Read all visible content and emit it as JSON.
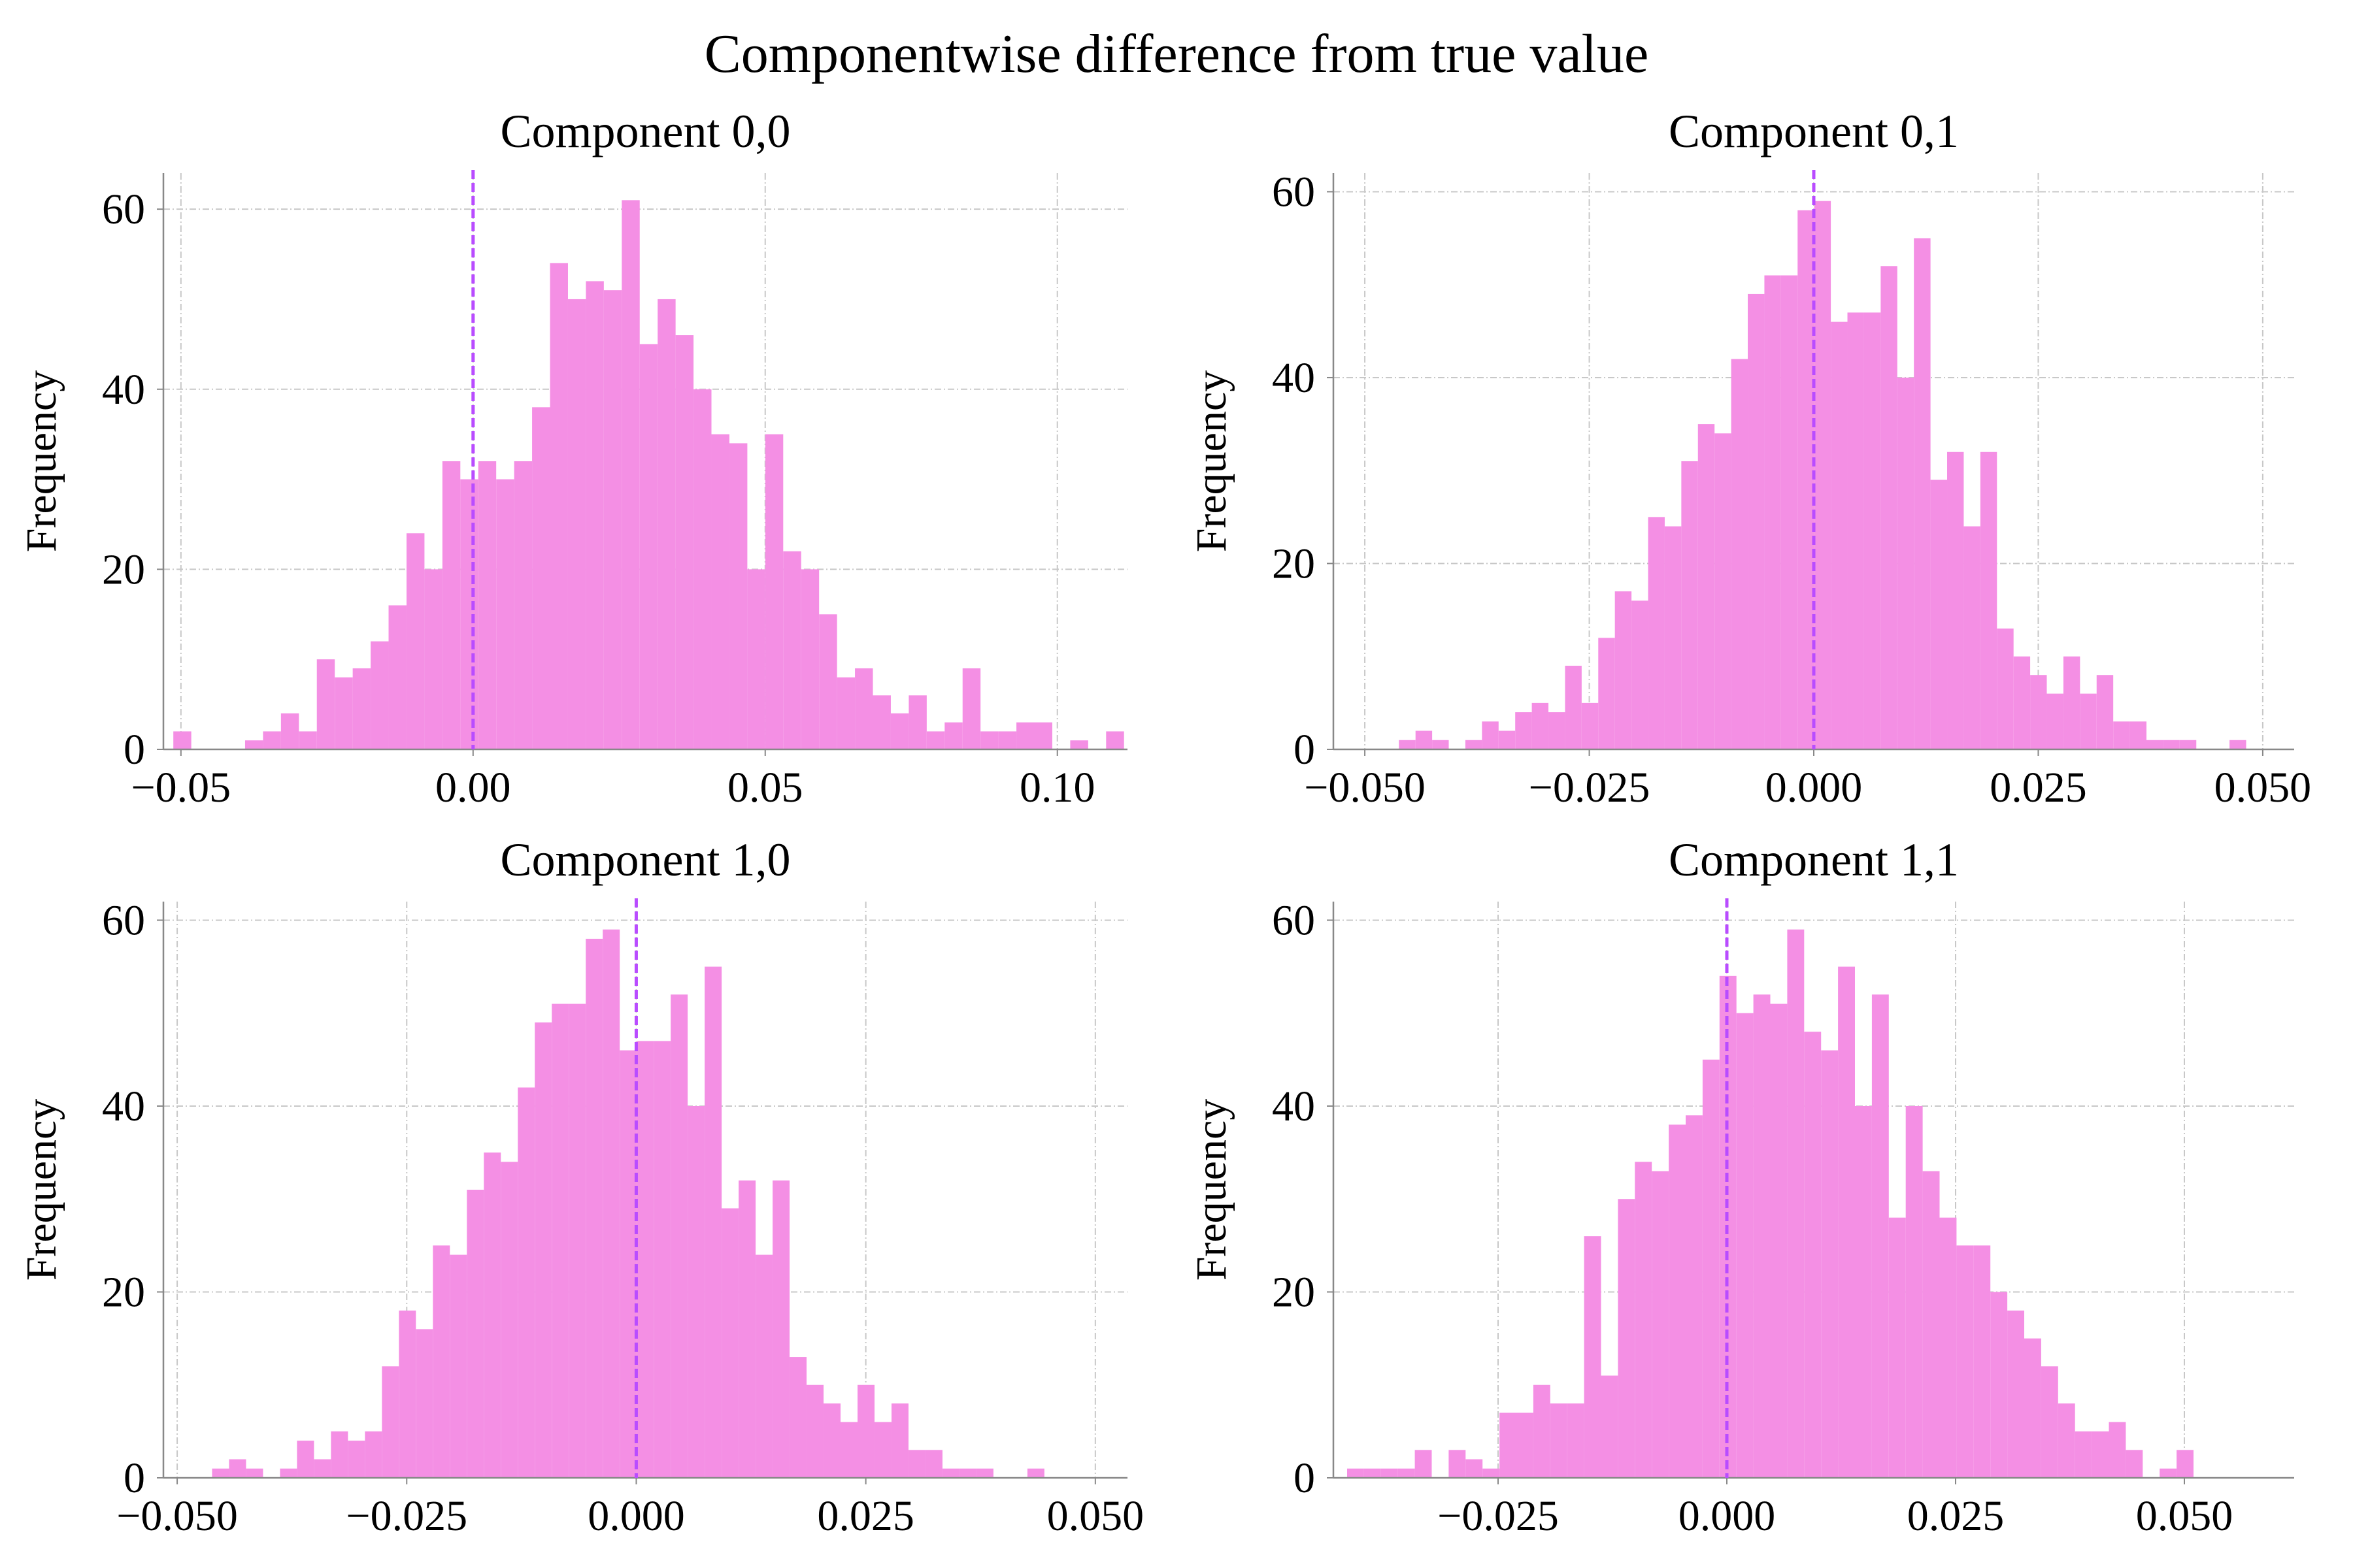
{
  "suptitle": "Componentwise difference from true value",
  "colors": {
    "bars": "#f48fe4",
    "reference_line": "#b94cff",
    "grid": "#c8c8c8",
    "axis": "#888888"
  },
  "chart_data": [
    {
      "type": "bar",
      "title": "Component 0,0",
      "xlabel": "",
      "ylabel": "Frequency",
      "xlim": [
        -0.053,
        0.112
      ],
      "ylim": [
        0,
        64
      ],
      "xticks": [
        -0.05,
        0.0,
        0.05,
        0.1
      ],
      "xtick_labels": [
        "−0.05",
        "0.00",
        "0.05",
        "0.10"
      ],
      "yticks": [
        0,
        20,
        40,
        60
      ],
      "ytick_labels": [
        "0",
        "20",
        "40",
        "60"
      ],
      "reference_x": 0.0,
      "bin_start": -0.0513,
      "bin_width": 0.00307,
      "values": [
        2,
        0,
        0,
        0,
        1,
        2,
        4,
        2,
        10,
        8,
        9,
        12,
        16,
        24,
        20,
        32,
        30,
        32,
        30,
        32,
        38,
        54,
        50,
        52,
        51,
        61,
        45,
        50,
        46,
        40,
        35,
        34,
        20,
        35,
        22,
        20,
        15,
        8,
        9,
        6,
        4,
        6,
        2,
        3,
        9,
        2,
        2,
        3,
        3,
        0,
        1,
        0,
        2
      ]
    },
    {
      "type": "bar",
      "title": "Component 0,1",
      "xlabel": "",
      "ylabel": "Frequency",
      "xlim": [
        -0.0535,
        0.0535
      ],
      "ylim": [
        0,
        62
      ],
      "xticks": [
        -0.05,
        -0.025,
        0.0,
        0.025,
        0.05
      ],
      "xtick_labels": [
        "−0.050",
        "−0.025",
        "0.000",
        "0.025",
        "0.050"
      ],
      "yticks": [
        0,
        20,
        40,
        60
      ],
      "ytick_labels": [
        "0",
        "20",
        "40",
        "60"
      ],
      "reference_x": 0.0,
      "bin_start": -0.0462,
      "bin_width": 0.00185,
      "values": [
        1,
        2,
        1,
        0,
        1,
        3,
        2,
        4,
        5,
        4,
        9,
        5,
        12,
        17,
        16,
        25,
        24,
        31,
        35,
        34,
        42,
        49,
        51,
        51,
        58,
        59,
        46,
        47,
        47,
        52,
        40,
        55,
        29,
        32,
        24,
        32,
        13,
        10,
        8,
        6,
        10,
        6,
        8,
        3,
        3,
        1,
        1,
        1,
        0,
        0,
        1
      ]
    },
    {
      "type": "bar",
      "title": "Component 1,0",
      "xlabel": "",
      "ylabel": "Frequency",
      "xlim": [
        -0.0515,
        0.0535
      ],
      "ylim": [
        0,
        62
      ],
      "xticks": [
        -0.05,
        -0.025,
        0.0,
        0.025,
        0.05
      ],
      "xtick_labels": [
        "−0.050",
        "−0.025",
        "0.000",
        "0.025",
        "0.050"
      ],
      "yticks": [
        0,
        20,
        40,
        60
      ],
      "ytick_labels": [
        "0",
        "20",
        "40",
        "60"
      ],
      "reference_x": 0.0,
      "bin_start": -0.0462,
      "bin_width": 0.00185,
      "values": [
        1,
        2,
        1,
        0,
        1,
        4,
        2,
        5,
        4,
        5,
        12,
        18,
        16,
        25,
        24,
        31,
        35,
        34,
        42,
        49,
        51,
        51,
        58,
        59,
        46,
        47,
        47,
        52,
        40,
        55,
        29,
        32,
        24,
        32,
        13,
        10,
        8,
        6,
        10,
        6,
        8,
        3,
        3,
        1,
        1,
        1,
        0,
        0,
        1
      ]
    },
    {
      "type": "bar",
      "title": "Component 1,1",
      "xlabel": "",
      "ylabel": "Frequency",
      "xlim": [
        -0.043,
        0.062
      ],
      "ylim": [
        0,
        62
      ],
      "xticks": [
        -0.025,
        0.0,
        0.025,
        0.05
      ],
      "xtick_labels": [
        "−0.025",
        "0.000",
        "0.025",
        "0.050"
      ],
      "yticks": [
        0,
        20,
        40,
        60
      ],
      "ytick_labels": [
        "0",
        "20",
        "40",
        "60"
      ],
      "reference_x": 0.0,
      "bin_start": -0.0415,
      "bin_width": 0.00185,
      "values": [
        1,
        1,
        1,
        1,
        3,
        0,
        3,
        2,
        1,
        7,
        7,
        10,
        8,
        8,
        26,
        11,
        30,
        34,
        33,
        38,
        39,
        45,
        54,
        50,
        52,
        51,
        59,
        48,
        46,
        55,
        40,
        52,
        28,
        40,
        33,
        28,
        25,
        25,
        20,
        18,
        15,
        12,
        8,
        5,
        5,
        6,
        3,
        0,
        1,
        3
      ]
    }
  ]
}
